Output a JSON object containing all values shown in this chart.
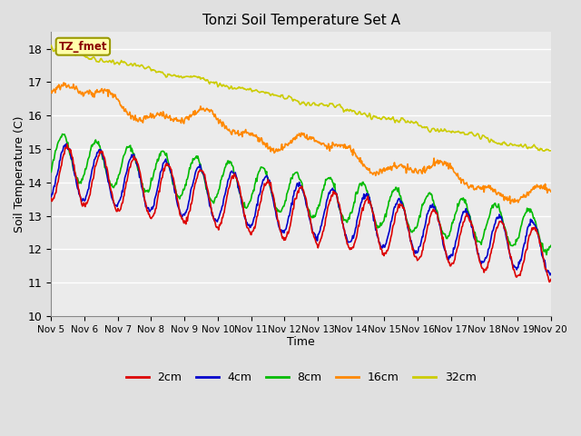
{
  "title": "Tonzi Soil Temperature Set A",
  "xlabel": "Time",
  "ylabel": "Soil Temperature (C)",
  "ylim": [
    10.0,
    18.5
  ],
  "x_tick_labels": [
    "Nov 5",
    "Nov 6",
    "Nov 7",
    "Nov 8",
    "Nov 9",
    "Nov 10",
    "Nov 11",
    "Nov 12",
    "Nov 13",
    "Nov 14",
    "Nov 15",
    "Nov 16",
    "Nov 17",
    "Nov 18",
    "Nov 19",
    "Nov 20"
  ],
  "series_colors": {
    "2cm": "#dd0000",
    "4cm": "#0000cc",
    "8cm": "#00bb00",
    "16cm": "#ff8800",
    "32cm": "#cccc00"
  },
  "legend_label_box": "TZ_fmet",
  "background_color": "#e0e0e0",
  "plot_bg_color": "#ebebeb",
  "grid_color": "#ffffff"
}
